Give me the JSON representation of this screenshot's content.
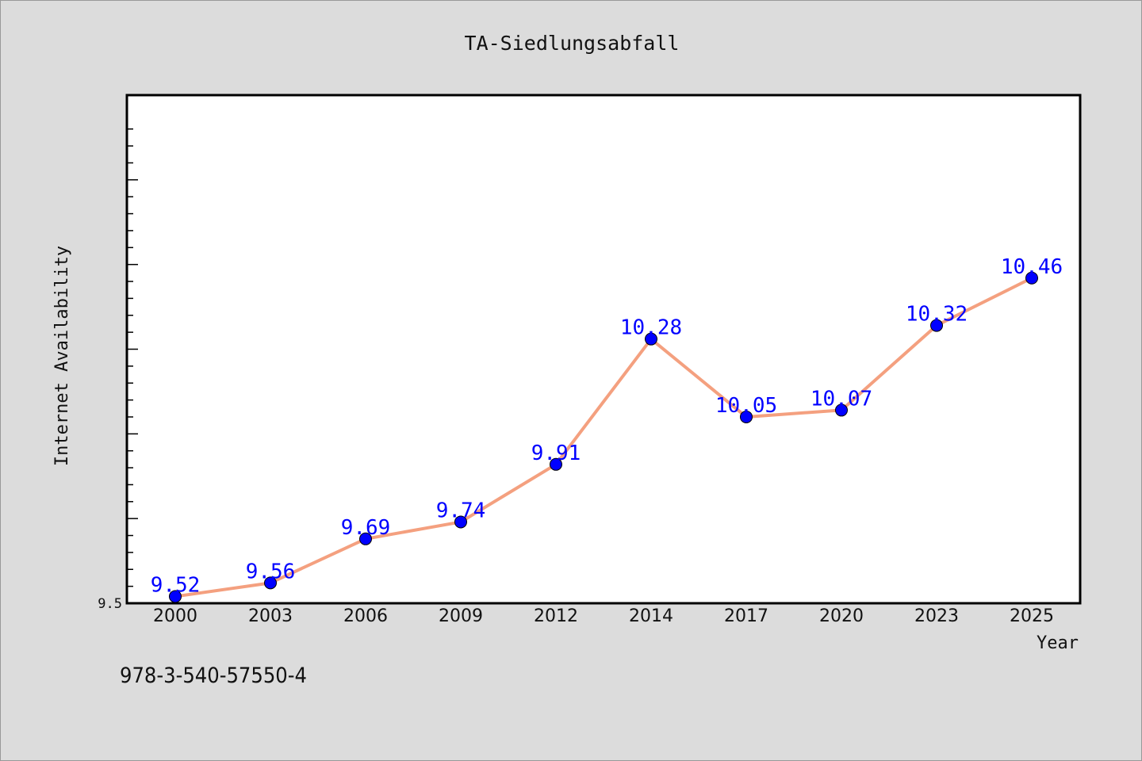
{
  "chart_data": {
    "type": "line",
    "title": "TA-Siedlungsabfall",
    "xlabel": "Year",
    "ylabel": "Internet Availability",
    "categories": [
      "2000",
      "2003",
      "2006",
      "2009",
      "2012",
      "2014",
      "2017",
      "2020",
      "2023",
      "2025"
    ],
    "series": [
      {
        "values": [
          9.52,
          9.56,
          9.69,
          9.74,
          9.91,
          10.28,
          10.05,
          10.07,
          10.32,
          10.46
        ]
      }
    ],
    "data_labels": [
      "9.52",
      "9.56",
      "9.69",
      "9.74",
      "9.91",
      "10.28",
      "10.05",
      "10.07",
      "10.32",
      "10.46"
    ],
    "ylim": [
      9.5,
      11.0
    ],
    "y_tick_labels": [
      "9.5"
    ],
    "grid": false,
    "legend": "none",
    "colors": {
      "line": "#f4a07f",
      "marker": "#0000ff",
      "label": "#0000ff",
      "plot_background": "#ffffff",
      "page_background": "#dcdcdc"
    }
  },
  "footer": {
    "isbn": "978-3-540-57550-4"
  }
}
